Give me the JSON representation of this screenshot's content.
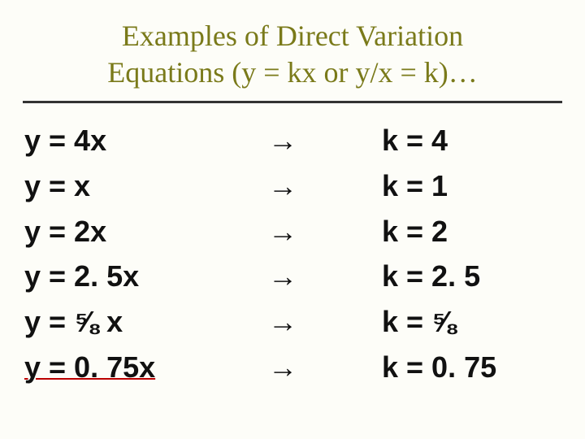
{
  "title": {
    "line1": "Examples of Direct Variation",
    "line2": "Equations (y = kx or y/x = k)…",
    "color": "#7a7a1a",
    "fontsize": 36,
    "rule_color": "#333333"
  },
  "arrow_glyph": "→",
  "fraction_glyph": "⅝",
  "equations": [
    {
      "lhs": "y = 4x",
      "rhs": "k = 4",
      "underline_lhs": false
    },
    {
      "lhs": "y = x",
      "rhs": "k = 1",
      "underline_lhs": false
    },
    {
      "lhs": "y = 2x",
      "rhs": "k = 2",
      "underline_lhs": false
    },
    {
      "lhs": "y = 2. 5x",
      "rhs": "k = 2. 5",
      "underline_lhs": false
    },
    {
      "lhs": "y = ⅝ x",
      "rhs": "k = ⅝",
      "underline_lhs": false
    },
    {
      "lhs": "y = 0. 75x",
      "rhs": "k = 0. 75",
      "underline_lhs": true
    }
  ],
  "style": {
    "background_color": "#fdfdf8",
    "body_font": "Verdana",
    "body_fontsize": 36,
    "body_weight": "bold",
    "text_color": "#111111",
    "underline_color": "#b00000"
  }
}
